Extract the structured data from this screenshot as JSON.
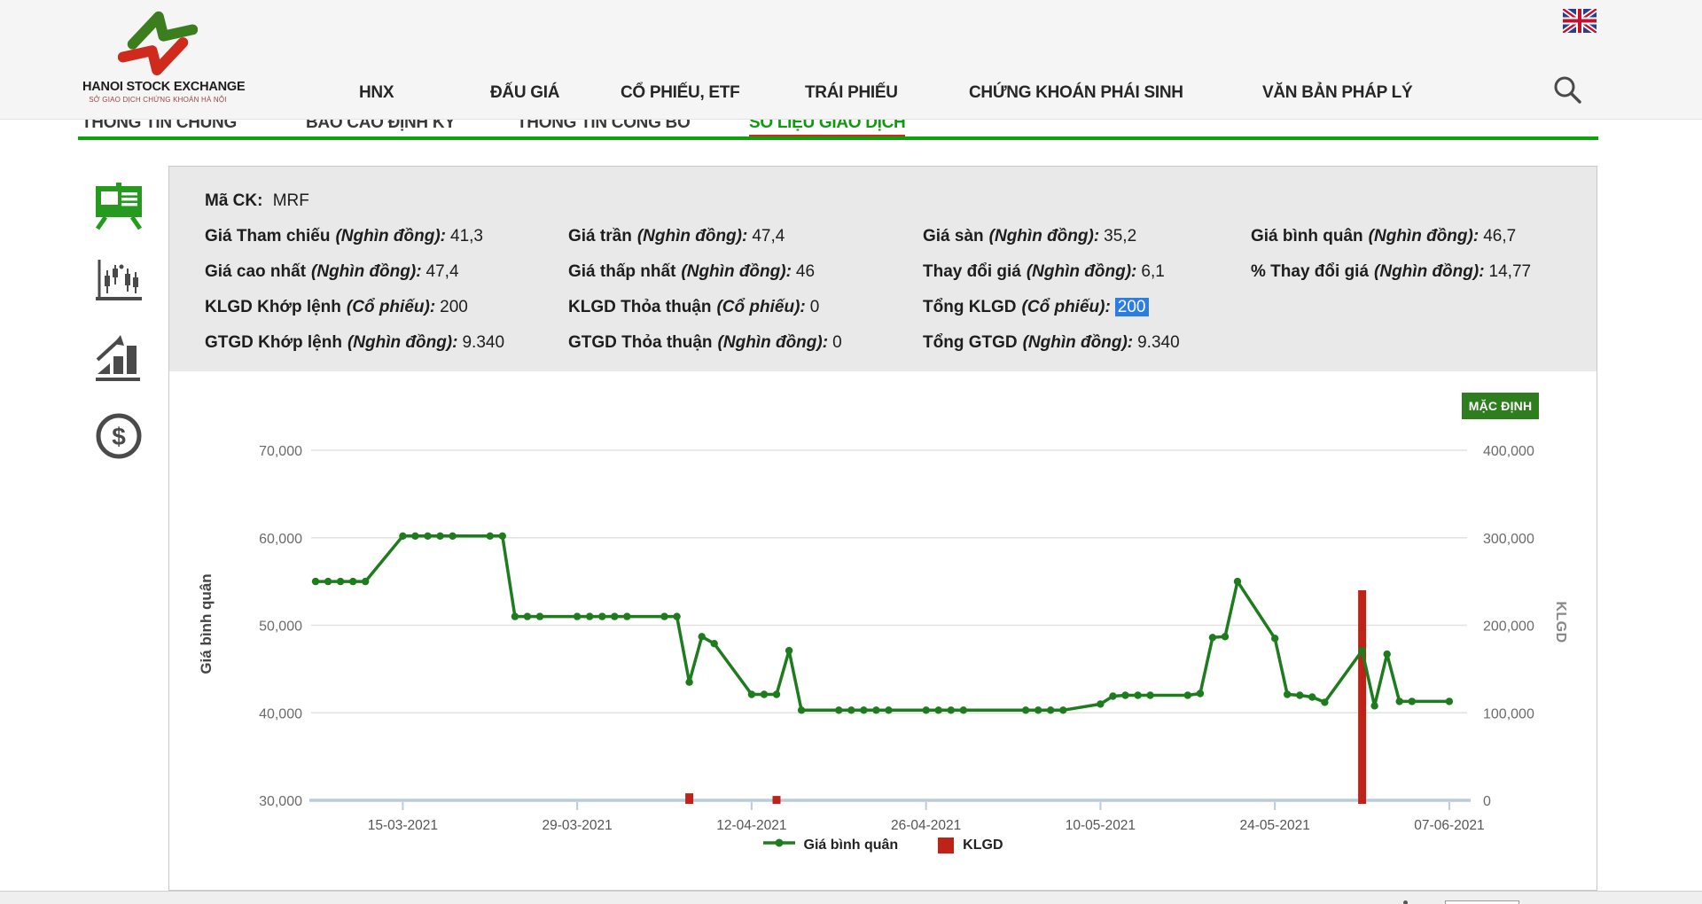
{
  "header": {
    "logo": {
      "title": "HANOI STOCK EXCHANGE",
      "subtitle": "SỞ GIAO DỊCH CHỨNG KHOÁN HÀ NỘI"
    },
    "nav": [
      {
        "label": "HNX"
      },
      {
        "label": "ĐẤU GIÁ"
      },
      {
        "label": "CỔ PHIẾU, ETF"
      },
      {
        "label": "TRÁI PHIẾU"
      },
      {
        "label": "CHỨNG KHOÁN PHÁI SINH"
      },
      {
        "label": "VĂN BẢN PHÁP LÝ"
      }
    ],
    "icons": [
      "uk-flag-icon",
      "search-icon"
    ]
  },
  "tabs": [
    {
      "label": "THÔNG TIN CHUNG",
      "active": false
    },
    {
      "label": "BÁO CÁO ĐỊNH KỲ",
      "active": false
    },
    {
      "label": "THÔNG TIN CÔNG BỐ",
      "active": false
    },
    {
      "label": "SỐ LIỆU GIAO DỊCH",
      "active": true
    }
  ],
  "sidebar": {
    "items": [
      {
        "icon": "presentation-board-icon",
        "active": true
      },
      {
        "icon": "candlestick-chart-icon",
        "active": false
      },
      {
        "icon": "bar-chart-arrow-icon",
        "active": false
      },
      {
        "icon": "dollar-circle-icon",
        "active": false
      }
    ],
    "active_color": "#259a1f",
    "inactive_color": "#4a4a4a"
  },
  "info": {
    "ticker_label": "Mã CK:",
    "ticker_value": "MRF",
    "rows": [
      [
        {
          "label": "Giá Tham chiếu",
          "unit": "(Nghìn đồng):",
          "value": "41,3"
        },
        {
          "label": "Giá trần",
          "unit": "(Nghìn đồng):",
          "value": "47,4"
        },
        {
          "label": "Giá sàn",
          "unit": "(Nghìn đồng):",
          "value": "35,2"
        },
        {
          "label": "Giá bình quân",
          "unit": "(Nghìn đồng):",
          "value": "46,7"
        }
      ],
      [
        {
          "label": "Giá cao nhất",
          "unit": "(Nghìn đồng):",
          "value": "47,4"
        },
        {
          "label": "Giá thấp nhất",
          "unit": "(Nghìn đồng):",
          "value": "46"
        },
        {
          "label": "Thay đổi giá",
          "unit": "(Nghìn đồng):",
          "value": "6,1"
        },
        {
          "label": "% Thay đổi giá",
          "unit": "(Nghìn đồng):",
          "value": "14,77"
        }
      ],
      [
        {
          "label": "KLGD Khớp lệnh",
          "unit": "(Cổ phiếu):",
          "value": "200"
        },
        {
          "label": "KLGD Thỏa thuận",
          "unit": "(Cổ phiếu):",
          "value": "0"
        },
        {
          "label": "Tổng KLGD",
          "unit": "(Cổ phiếu):",
          "value": "200",
          "highlighted": true
        }
      ],
      [
        {
          "label": "GTGD Khớp lệnh",
          "unit": "(Nghìn đồng):",
          "value": "9.340"
        },
        {
          "label": "GTGD Thỏa thuận",
          "unit": "(Nghìn đồng):",
          "value": "0"
        },
        {
          "label": "Tổng GTGD",
          "unit": "(Nghìn đồng):",
          "value": "9.340"
        }
      ]
    ],
    "highlight_color": "#2b7de1"
  },
  "chart": {
    "default_button_label": "MẶC ĐỊNH",
    "default_button_color": "#2e7d1e"
  },
  "chart_data": {
    "type": "line+bar",
    "title": "",
    "x_domain": [
      "08-03-2021",
      "08-06-2021"
    ],
    "x_ticks": [
      "15-03-2021",
      "29-03-2021",
      "12-04-2021",
      "26-04-2021",
      "10-05-2021",
      "24-05-2021",
      "07-06-2021"
    ],
    "y_left": {
      "label": "Giá bình quân",
      "min": 30000,
      "max": 70000,
      "ticks": [
        30000,
        40000,
        50000,
        60000,
        70000
      ]
    },
    "y_right": {
      "label": "KLGD",
      "min": 0,
      "max": 400000,
      "ticks": [
        0,
        100000,
        200000,
        300000,
        400000
      ]
    },
    "grid": true,
    "legend_position": "bottom",
    "legend": [
      "Giá bình quân",
      "KLGD"
    ],
    "axis_line_color": "#b9cbdd",
    "series": [
      {
        "name": "Giá bình quân",
        "type": "line",
        "axis": "left",
        "color": "#1e7c1e",
        "points": [
          [
            "08-03-2021",
            55000
          ],
          [
            "09-03-2021",
            55000
          ],
          [
            "10-03-2021",
            55000
          ],
          [
            "11-03-2021",
            55000
          ],
          [
            "12-03-2021",
            55000
          ],
          [
            "15-03-2021",
            60200
          ],
          [
            "16-03-2021",
            60200
          ],
          [
            "17-03-2021",
            60200
          ],
          [
            "18-03-2021",
            60200
          ],
          [
            "19-03-2021",
            60200
          ],
          [
            "22-03-2021",
            60200
          ],
          [
            "23-03-2021",
            60200
          ],
          [
            "24-03-2021",
            51000
          ],
          [
            "25-03-2021",
            51000
          ],
          [
            "26-03-2021",
            51000
          ],
          [
            "29-03-2021",
            51000
          ],
          [
            "30-03-2021",
            51000
          ],
          [
            "31-03-2021",
            51000
          ],
          [
            "01-04-2021",
            51000
          ],
          [
            "02-04-2021",
            51000
          ],
          [
            "05-04-2021",
            51000
          ],
          [
            "06-04-2021",
            51000
          ],
          [
            "07-04-2021",
            43500
          ],
          [
            "08-04-2021",
            48700
          ],
          [
            "09-04-2021",
            47900
          ],
          [
            "12-04-2021",
            42100
          ],
          [
            "13-04-2021",
            42100
          ],
          [
            "14-04-2021",
            42100
          ],
          [
            "15-04-2021",
            47100
          ],
          [
            "16-04-2021",
            40300
          ],
          [
            "19-04-2021",
            40300
          ],
          [
            "20-04-2021",
            40300
          ],
          [
            "21-04-2021",
            40300
          ],
          [
            "22-04-2021",
            40300
          ],
          [
            "23-04-2021",
            40300
          ],
          [
            "26-04-2021",
            40300
          ],
          [
            "27-04-2021",
            40300
          ],
          [
            "28-04-2021",
            40300
          ],
          [
            "29-04-2021",
            40300
          ],
          [
            "04-05-2021",
            40300
          ],
          [
            "05-05-2021",
            40300
          ],
          [
            "06-05-2021",
            40300
          ],
          [
            "07-05-2021",
            40300
          ],
          [
            "10-05-2021",
            41000
          ],
          [
            "11-05-2021",
            41900
          ],
          [
            "12-05-2021",
            42000
          ],
          [
            "13-05-2021",
            42000
          ],
          [
            "14-05-2021",
            42000
          ],
          [
            "17-05-2021",
            42000
          ],
          [
            "18-05-2021",
            42200
          ],
          [
            "19-05-2021",
            48600
          ],
          [
            "20-05-2021",
            48700
          ],
          [
            "21-05-2021",
            55000
          ],
          [
            "24-05-2021",
            48500
          ],
          [
            "25-05-2021",
            42100
          ],
          [
            "26-05-2021",
            42000
          ],
          [
            "27-05-2021",
            41800
          ],
          [
            "28-05-2021",
            41200
          ],
          [
            "31-05-2021",
            47100
          ],
          [
            "01-06-2021",
            40800
          ],
          [
            "02-06-2021",
            46700
          ],
          [
            "03-06-2021",
            41300
          ],
          [
            "04-06-2021",
            41300
          ],
          [
            "07-06-2021",
            41300
          ]
        ]
      },
      {
        "name": "KLGD",
        "type": "bar",
        "axis": "right",
        "color": "#bf2318",
        "points": [
          [
            "07-04-2021",
            8000
          ],
          [
            "14-04-2021",
            5000
          ],
          [
            "31-05-2021",
            240000
          ]
        ]
      }
    ]
  },
  "footer": {
    "strip": "partial"
  }
}
